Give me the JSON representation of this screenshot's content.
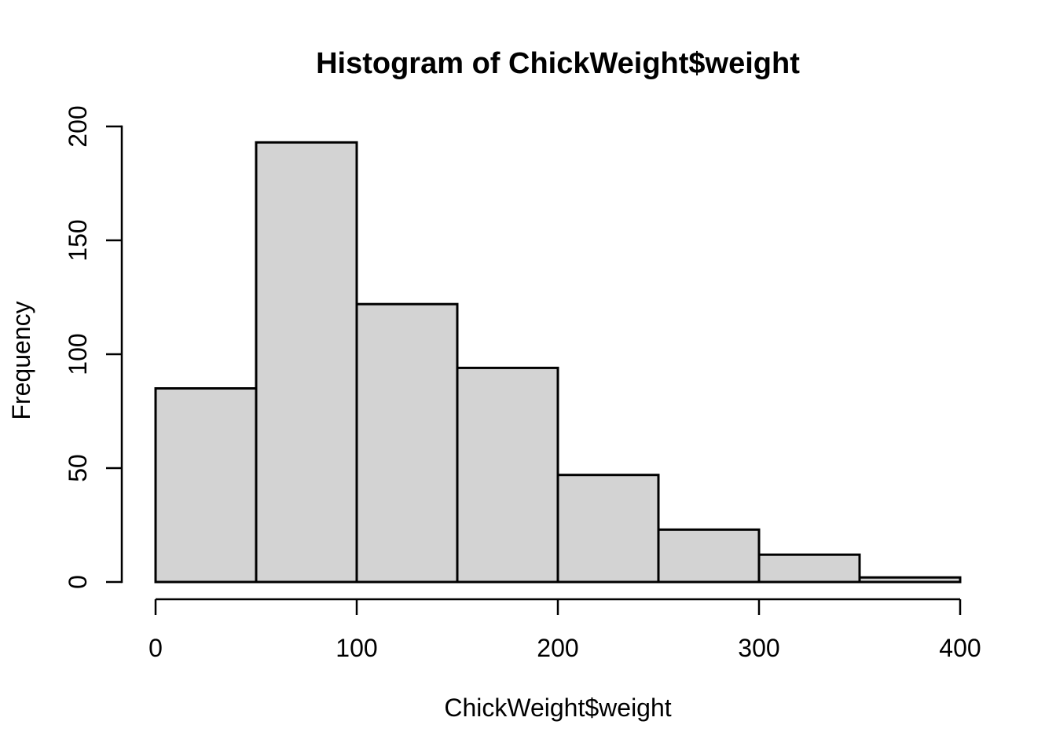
{
  "chart_data": {
    "type": "bar",
    "subtype": "histogram",
    "title": "Histogram of ChickWeight$weight",
    "xlabel": "ChickWeight$weight",
    "ylabel": "Frequency",
    "bin_breaks": [
      0,
      50,
      100,
      150,
      200,
      250,
      300,
      350,
      400
    ],
    "counts": [
      85,
      193,
      122,
      94,
      47,
      23,
      12,
      2
    ],
    "x_ticks": [
      0,
      100,
      200,
      300,
      400
    ],
    "y_ticks": [
      0,
      50,
      100,
      150,
      200
    ],
    "xlim": [
      0,
      400
    ],
    "ylim": [
      0,
      200
    ],
    "grid": "off",
    "legend": "none",
    "colors": {
      "bar_fill": "#d3d3d3",
      "bar_stroke": "#000000",
      "axis": "#000000",
      "text": "#000000",
      "background": "#ffffff"
    }
  }
}
